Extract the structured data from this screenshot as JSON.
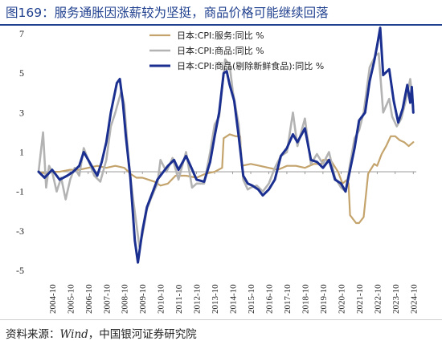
{
  "header": {
    "title": "图169：服务通胀因涨薪较为坚挺，商品价格可能继续回落"
  },
  "footer": {
    "source_prefix": "资料来源：",
    "source_wind": "Wind",
    "source_suffix": "，中国银河证券研究院"
  },
  "chart_data": {
    "type": "line",
    "title": "",
    "xlabel": "",
    "ylabel": "",
    "ylim": [
      -5,
      7
    ],
    "yticks": [
      -5,
      -3,
      -1,
      1,
      3,
      5,
      7
    ],
    "xlim": [
      "2004-01",
      "2024-12"
    ],
    "xtick_labels": [
      "2004-10",
      "2005-10",
      "2006-10",
      "2007-10",
      "2008-10",
      "2009-10",
      "2010-10",
      "2011-10",
      "2012-10",
      "2013-10",
      "2014-10",
      "2015-10",
      "2016-10",
      "2017-10",
      "2018-10",
      "2019-10",
      "2020-10",
      "2021-10",
      "2022-10",
      "2023-10",
      "2024-10"
    ],
    "grid": false,
    "legend_position": "top-right",
    "series": [
      {
        "name": "日本:CPI:服务:同比 %",
        "color": "#c4a46c",
        "points": [
          [
            "2004-01",
            0.0
          ],
          [
            "2004-06",
            -0.1
          ],
          [
            "2004-10",
            0.0
          ],
          [
            "2005-03",
            0.0
          ],
          [
            "2005-10",
            0.1
          ],
          [
            "2006-04",
            0.1
          ],
          [
            "2006-10",
            0.2
          ],
          [
            "2007-04",
            0.3
          ],
          [
            "2007-10",
            0.2
          ],
          [
            "2008-04",
            0.3
          ],
          [
            "2008-10",
            0.2
          ],
          [
            "2009-02",
            -0.1
          ],
          [
            "2009-06",
            -0.3
          ],
          [
            "2009-10",
            -0.3
          ],
          [
            "2010-02",
            -0.4
          ],
          [
            "2010-06",
            -0.5
          ],
          [
            "2010-10",
            -0.7
          ],
          [
            "2011-03",
            -0.6
          ],
          [
            "2011-08",
            -0.2
          ],
          [
            "2012-03",
            -0.2
          ],
          [
            "2012-10",
            -0.3
          ],
          [
            "2013-04",
            -0.1
          ],
          [
            "2013-10",
            0.0
          ],
          [
            "2014-03",
            0.2
          ],
          [
            "2014-04",
            1.7
          ],
          [
            "2014-08",
            1.9
          ],
          [
            "2014-12",
            1.8
          ],
          [
            "2015-03",
            1.8
          ],
          [
            "2015-04",
            0.3
          ],
          [
            "2015-10",
            0.4
          ],
          [
            "2016-04",
            0.3
          ],
          [
            "2016-10",
            0.2
          ],
          [
            "2017-04",
            0.1
          ],
          [
            "2017-10",
            0.3
          ],
          [
            "2018-04",
            0.3
          ],
          [
            "2018-10",
            0.2
          ],
          [
            "2019-04",
            0.4
          ],
          [
            "2019-09",
            0.4
          ],
          [
            "2019-10",
            0.6
          ],
          [
            "2020-03",
            0.6
          ],
          [
            "2020-08",
            0.0
          ],
          [
            "2020-11",
            -0.6
          ],
          [
            "2021-02",
            -0.4
          ],
          [
            "2021-03",
            -0.6
          ],
          [
            "2021-04",
            -2.2
          ],
          [
            "2021-08",
            -2.6
          ],
          [
            "2021-10",
            -2.6
          ],
          [
            "2022-01",
            -2.3
          ],
          [
            "2022-04",
            -0.1
          ],
          [
            "2022-08",
            0.4
          ],
          [
            "2022-10",
            0.3
          ],
          [
            "2023-01",
            0.9
          ],
          [
            "2023-04",
            1.3
          ],
          [
            "2023-07",
            1.8
          ],
          [
            "2023-10",
            1.8
          ],
          [
            "2024-01",
            1.6
          ],
          [
            "2024-04",
            1.5
          ],
          [
            "2024-07",
            1.3
          ],
          [
            "2024-10",
            1.5
          ]
        ]
      },
      {
        "name": "日本:CPI:商品:同比 %",
        "color": "#b3b3b3",
        "points": [
          [
            "2004-01",
            0.0
          ],
          [
            "2004-04",
            2.0
          ],
          [
            "2004-06",
            -0.8
          ],
          [
            "2004-08",
            0.3
          ],
          [
            "2004-10",
            0.0
          ],
          [
            "2005-01",
            -1.0
          ],
          [
            "2005-04",
            -0.3
          ],
          [
            "2005-07",
            -1.4
          ],
          [
            "2005-10",
            -0.4
          ],
          [
            "2006-01",
            0.2
          ],
          [
            "2006-04",
            -0.2
          ],
          [
            "2006-07",
            1.2
          ],
          [
            "2006-10",
            0.6
          ],
          [
            "2007-02",
            -0.2
          ],
          [
            "2007-06",
            -0.5
          ],
          [
            "2007-10",
            0.6
          ],
          [
            "2008-01",
            2.3
          ],
          [
            "2008-04",
            3.0
          ],
          [
            "2008-08",
            4.1
          ],
          [
            "2008-10",
            3.4
          ],
          [
            "2009-01",
            0.4
          ],
          [
            "2009-04",
            -1.5
          ],
          [
            "2009-08",
            -3.8
          ],
          [
            "2009-10",
            -3.2
          ],
          [
            "2010-01",
            -1.9
          ],
          [
            "2010-04",
            -1.3
          ],
          [
            "2010-08",
            -0.6
          ],
          [
            "2010-10",
            0.6
          ],
          [
            "2011-02",
            0.0
          ],
          [
            "2011-06",
            0.7
          ],
          [
            "2011-10",
            -0.4
          ],
          [
            "2012-03",
            1.0
          ],
          [
            "2012-07",
            -0.8
          ],
          [
            "2012-10",
            -0.6
          ],
          [
            "2013-03",
            -0.6
          ],
          [
            "2013-07",
            1.0
          ],
          [
            "2013-10",
            2.4
          ],
          [
            "2014-01",
            2.8
          ],
          [
            "2014-05",
            5.7
          ],
          [
            "2014-08",
            5.4
          ],
          [
            "2014-10",
            4.1
          ],
          [
            "2015-02",
            2.4
          ],
          [
            "2015-05",
            -0.4
          ],
          [
            "2015-08",
            -0.9
          ],
          [
            "2015-10",
            -0.8
          ],
          [
            "2016-02",
            -0.7
          ],
          [
            "2016-06",
            -1.0
          ],
          [
            "2016-10",
            -0.6
          ],
          [
            "2017-02",
            0.2
          ],
          [
            "2017-06",
            0.8
          ],
          [
            "2017-10",
            1.0
          ],
          [
            "2018-02",
            3.0
          ],
          [
            "2018-05",
            1.3
          ],
          [
            "2018-10",
            2.7
          ],
          [
            "2019-02",
            0.4
          ],
          [
            "2019-06",
            0.9
          ],
          [
            "2019-10",
            0.4
          ],
          [
            "2020-02",
            1.0
          ],
          [
            "2020-06",
            -0.3
          ],
          [
            "2020-10",
            -0.8
          ],
          [
            "2021-01",
            -1.0
          ],
          [
            "2021-04",
            0.4
          ],
          [
            "2021-07",
            1.7
          ],
          [
            "2021-10",
            2.1
          ],
          [
            "2022-01",
            3.0
          ],
          [
            "2022-05",
            5.3
          ],
          [
            "2022-09",
            5.9
          ],
          [
            "2022-11",
            6.0
          ],
          [
            "2023-02",
            3.0
          ],
          [
            "2023-06",
            3.7
          ],
          [
            "2023-08",
            2.8
          ],
          [
            "2023-11",
            2.3
          ],
          [
            "2024-02",
            2.7
          ],
          [
            "2024-05",
            3.6
          ],
          [
            "2024-08",
            4.7
          ],
          [
            "2024-10",
            3.3
          ]
        ]
      },
      {
        "name": "日本:CPI:商品(剔除新鲜食品):同比 %",
        "color": "#1a2f8f",
        "points": [
          [
            "2004-01",
            0.0
          ],
          [
            "2004-05",
            -0.3
          ],
          [
            "2004-10",
            0.1
          ],
          [
            "2005-03",
            -0.4
          ],
          [
            "2005-08",
            -0.2
          ],
          [
            "2005-12",
            0.0
          ],
          [
            "2006-04",
            0.3
          ],
          [
            "2006-07",
            1.0
          ],
          [
            "2006-10",
            0.6
          ],
          [
            "2007-01",
            0.2
          ],
          [
            "2007-04",
            -0.2
          ],
          [
            "2007-07",
            0.5
          ],
          [
            "2007-10",
            1.5
          ],
          [
            "2008-01",
            3.0
          ],
          [
            "2008-05",
            4.5
          ],
          [
            "2008-07",
            4.7
          ],
          [
            "2008-09",
            3.5
          ],
          [
            "2008-11",
            1.8
          ],
          [
            "2009-02",
            -0.3
          ],
          [
            "2009-05",
            -3.5
          ],
          [
            "2009-07",
            -4.6
          ],
          [
            "2009-10",
            -3.0
          ],
          [
            "2010-01",
            -1.8
          ],
          [
            "2010-05",
            -1.0
          ],
          [
            "2010-08",
            -0.4
          ],
          [
            "2010-11",
            -0.1
          ],
          [
            "2011-03",
            0.3
          ],
          [
            "2011-07",
            0.6
          ],
          [
            "2011-10",
            0.1
          ],
          [
            "2012-03",
            0.8
          ],
          [
            "2012-06",
            0.3
          ],
          [
            "2012-10",
            -0.4
          ],
          [
            "2013-03",
            -0.5
          ],
          [
            "2013-07",
            0.5
          ],
          [
            "2013-10",
            1.8
          ],
          [
            "2014-01",
            3.0
          ],
          [
            "2014-04",
            5.0
          ],
          [
            "2014-06",
            5.1
          ],
          [
            "2014-08",
            4.4
          ],
          [
            "2014-11",
            3.6
          ],
          [
            "2015-02",
            1.8
          ],
          [
            "2015-05",
            -0.2
          ],
          [
            "2015-08",
            -0.6
          ],
          [
            "2015-11",
            -0.7
          ],
          [
            "2016-03",
            -0.9
          ],
          [
            "2016-06",
            -1.2
          ],
          [
            "2016-10",
            -0.9
          ],
          [
            "2017-02",
            -0.4
          ],
          [
            "2017-06",
            0.8
          ],
          [
            "2017-10",
            1.2
          ],
          [
            "2018-02",
            1.9
          ],
          [
            "2018-05",
            1.5
          ],
          [
            "2018-10",
            2.2
          ],
          [
            "2019-02",
            0.6
          ],
          [
            "2019-06",
            0.5
          ],
          [
            "2019-10",
            0.2
          ],
          [
            "2020-02",
            0.6
          ],
          [
            "2020-06",
            -0.4
          ],
          [
            "2020-10",
            -0.6
          ],
          [
            "2021-01",
            -1.0
          ],
          [
            "2021-04",
            0.1
          ],
          [
            "2021-07",
            1.2
          ],
          [
            "2021-10",
            2.6
          ],
          [
            "2022-02",
            3.0
          ],
          [
            "2022-05",
            4.6
          ],
          [
            "2022-08",
            5.6
          ],
          [
            "2022-10",
            6.4
          ],
          [
            "2022-12",
            7.3
          ],
          [
            "2023-02",
            4.9
          ],
          [
            "2023-06",
            5.2
          ],
          [
            "2023-09",
            3.6
          ],
          [
            "2023-12",
            2.5
          ],
          [
            "2024-03",
            3.2
          ],
          [
            "2024-06",
            4.4
          ],
          [
            "2024-08",
            3.5
          ],
          [
            "2024-09",
            4.3
          ],
          [
            "2024-10",
            3.0
          ]
        ]
      }
    ]
  }
}
